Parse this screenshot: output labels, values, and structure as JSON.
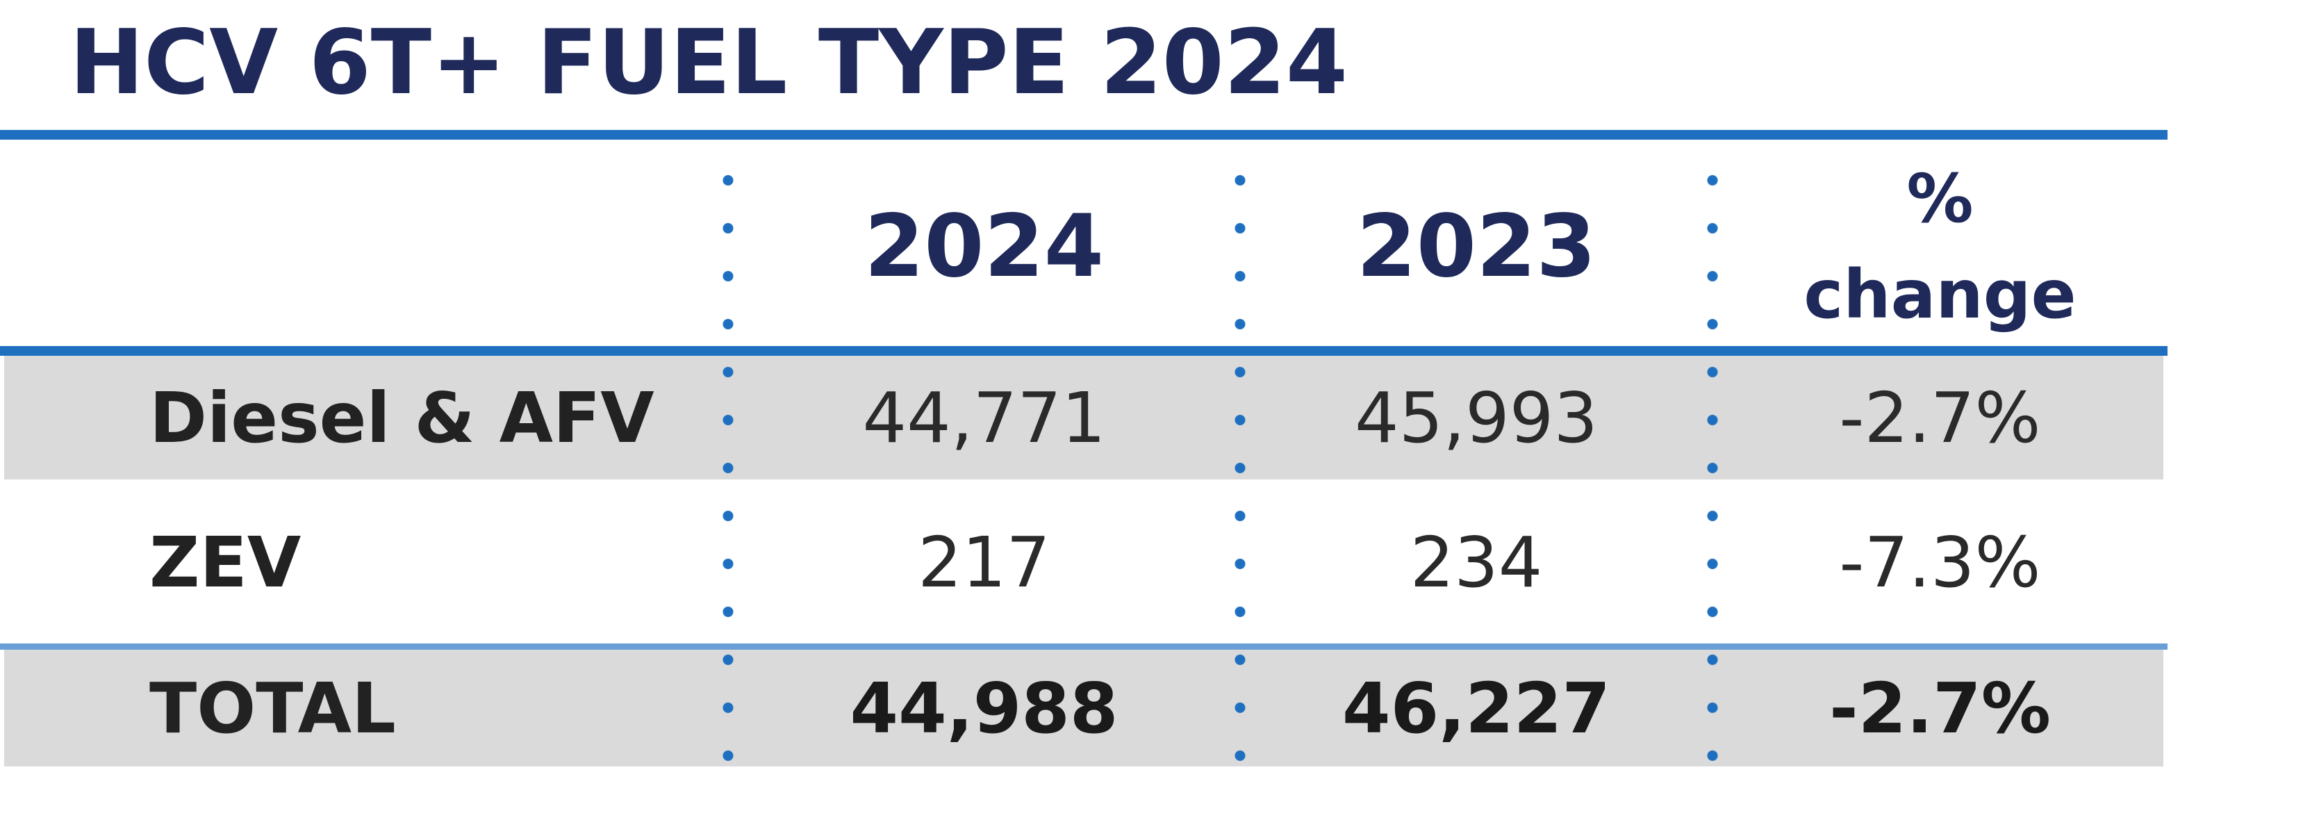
{
  "title": "HCV 6T+ FUEL TYPE 2024",
  "table": {
    "columns": [
      "2024",
      "2023",
      "%",
      "change"
    ],
    "rows": [
      {
        "label": "Diesel & AFV",
        "v2024": "44,771",
        "v2023": "45,993",
        "change": "-2.7%"
      },
      {
        "label": "ZEV",
        "v2024": "217",
        "v2023": "234",
        "change": "-7.3%"
      },
      {
        "label": "TOTAL",
        "v2024": "44,988",
        "v2023": "46,227",
        "change": "-2.7%"
      }
    ]
  },
  "colors": {
    "title": "#1f2a5a",
    "rule": "#1f6fc1",
    "row_shade": "#dadada"
  }
}
